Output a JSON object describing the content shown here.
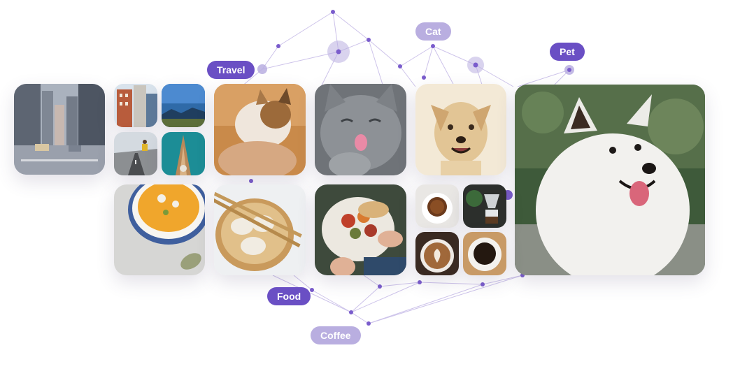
{
  "tags": {
    "travel": "Travel",
    "cat": "Cat",
    "pet": "Pet",
    "food": "Food",
    "coffee": "Coffee"
  },
  "colors": {
    "accent_dark": "#6a4fc4",
    "accent_light": "#b9aee0",
    "network_line": "#c9bfe8",
    "network_node": "#7a5ccc"
  },
  "photos": [
    "city-street-photo",
    "brick-buildings-photo",
    "mountain-sky-photo",
    "person-jumping-road-photo",
    "boat-bow-photo",
    "cat-being-petted-photo",
    "gray-cat-licking-photo",
    "smiling-dog-photo",
    "white-samoyed-dog-photo",
    "pumpkin-soup-photo",
    "dumplings-chopsticks-photo",
    "roasted-vegetables-plate-photo",
    "espresso-cup-photo",
    "pour-over-coffee-photo",
    "latte-art-photo",
    "black-coffee-cup-photo"
  ]
}
